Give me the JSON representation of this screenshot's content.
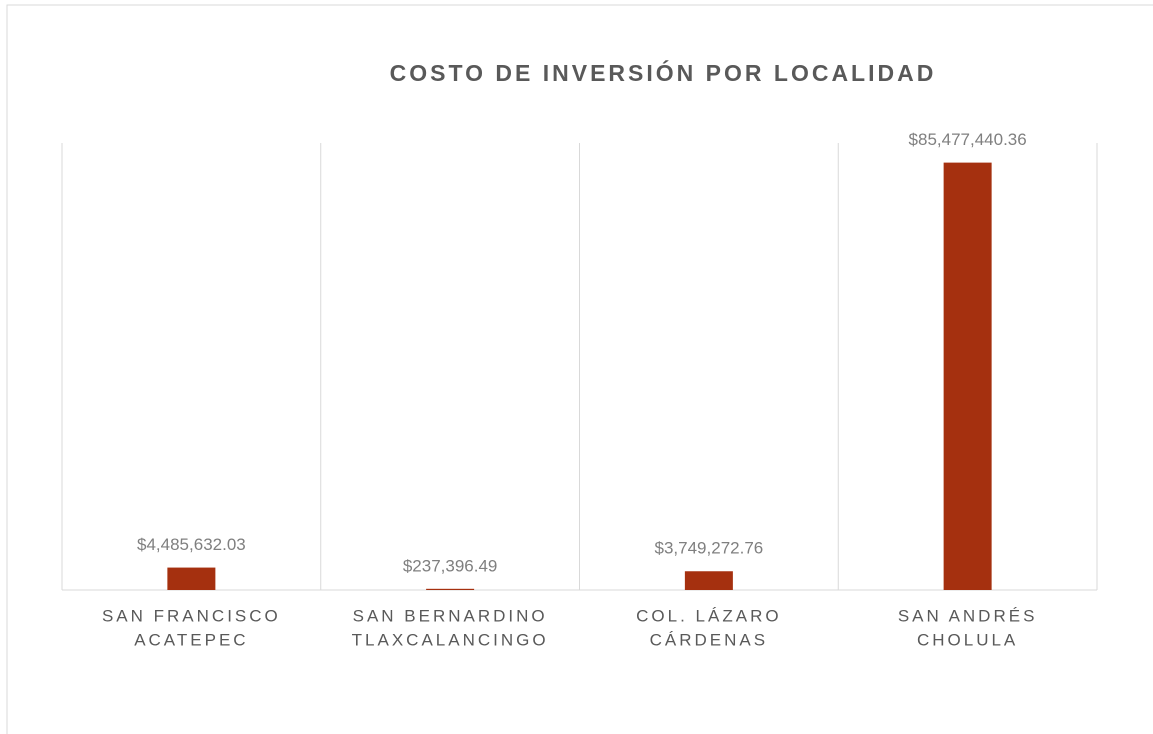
{
  "chart_data": {
    "type": "bar",
    "title": "COSTO DE INVERSIÓN POR LOCALIDAD",
    "categories": [
      [
        "SAN FRANCISCO",
        "ACATEPEC"
      ],
      [
        "SAN BERNARDINO",
        "TLAXCALANCINGO"
      ],
      [
        "COL. LÁZARO",
        "CÁRDENAS"
      ],
      [
        "SAN ANDRÉS",
        "CHOLULA"
      ]
    ],
    "values": [
      4485632.03,
      237396.49,
      3749272.76,
      85477440.36
    ],
    "value_labels": [
      "$4,485,632.03",
      "$237,396.49",
      "$3,749,272.76",
      "$85,477,440.36"
    ],
    "color": "#a5300f",
    "ylim": [
      0,
      90000000
    ]
  }
}
